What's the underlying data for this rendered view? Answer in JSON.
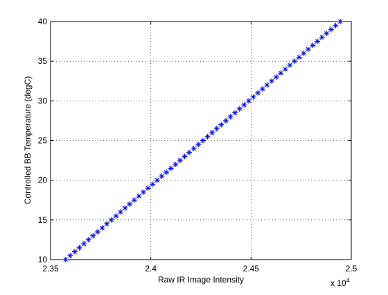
{
  "chart_data": {
    "type": "scatter",
    "title": "",
    "xlabel": "Raw IR Image Intensity",
    "ylabel": "Controlled BB Temperature (degC)",
    "x_exponent_label": "x 10",
    "x_exponent_power": "4",
    "xlim": [
      2.35,
      2.5
    ],
    "ylim": [
      10,
      40
    ],
    "x_ticks": [
      2.35,
      2.4,
      2.45,
      2.5
    ],
    "x_tick_labels": [
      "2.35",
      "2.4",
      "2.45",
      "2.5"
    ],
    "y_ticks": [
      10,
      15,
      20,
      25,
      30,
      35,
      40
    ],
    "y_tick_labels": [
      "10",
      "15",
      "20",
      "25",
      "30",
      "35",
      "40"
    ],
    "grid": true,
    "marker": "asterisk",
    "series_color": "#0000ff",
    "x_range": [
      2.3575,
      2.4945
    ],
    "y_range": [
      10,
      40
    ],
    "point_count": 61,
    "point_spacing_y": 0.5
  }
}
